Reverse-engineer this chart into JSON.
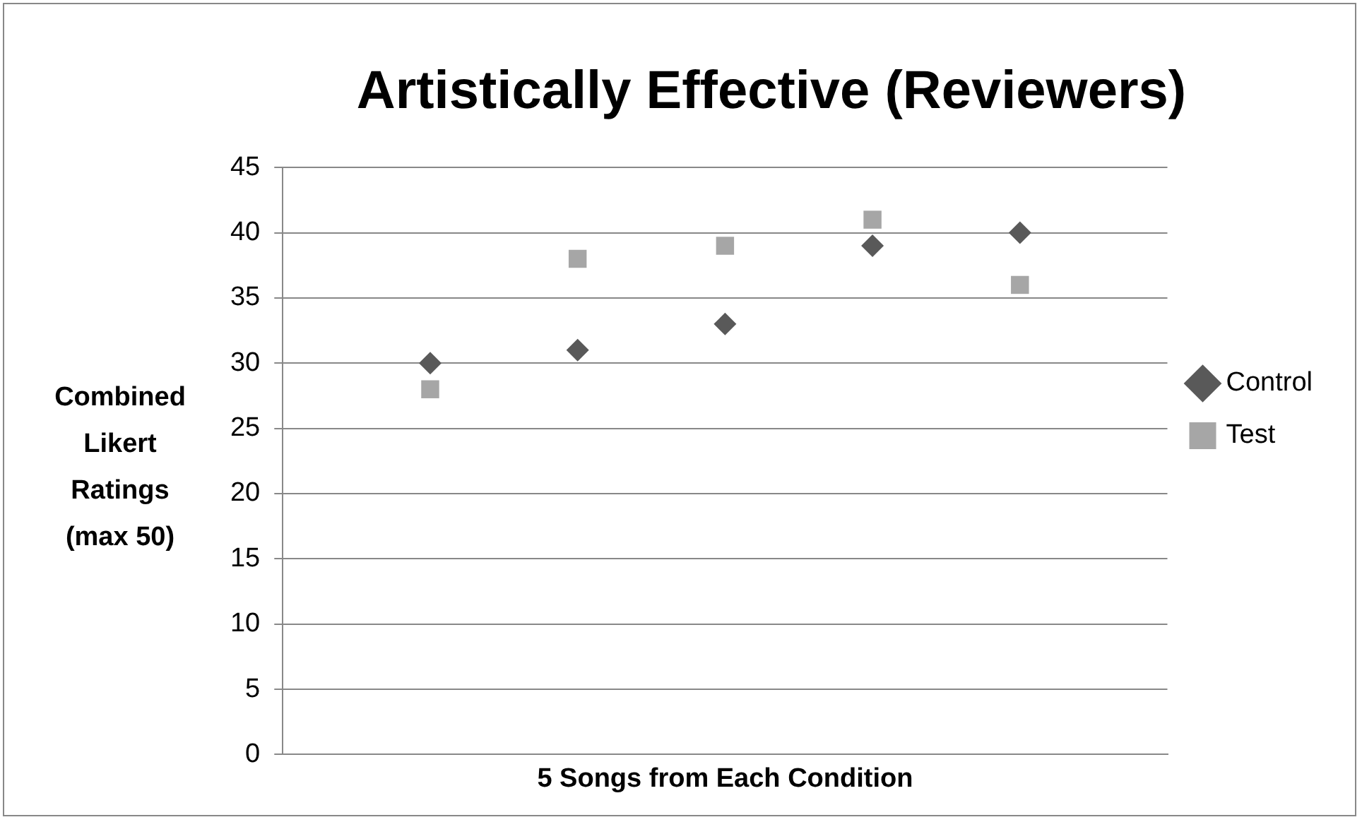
{
  "chart_data": {
    "type": "scatter",
    "title": "Artistically Effective (Reviewers)",
    "xlabel": "5 Songs from Each Condition",
    "ylabel": "Combined Likert Ratings (max 50)",
    "categories": [
      null,
      null,
      null,
      null,
      null
    ],
    "series": [
      {
        "name": "Control",
        "color": "#595959",
        "marker": "diamond",
        "values": [
          30,
          31,
          33,
          39,
          40
        ]
      },
      {
        "name": "Test",
        "color": "#a6a6a6",
        "marker": "square",
        "values": [
          28,
          38,
          39,
          41,
          36
        ]
      }
    ],
    "ylim": [
      0,
      45
    ],
    "yticks": [
      0,
      5,
      10,
      15,
      20,
      25,
      30,
      35,
      40,
      45
    ],
    "grid": "y",
    "legend": "right",
    "tick_labels": "y"
  }
}
